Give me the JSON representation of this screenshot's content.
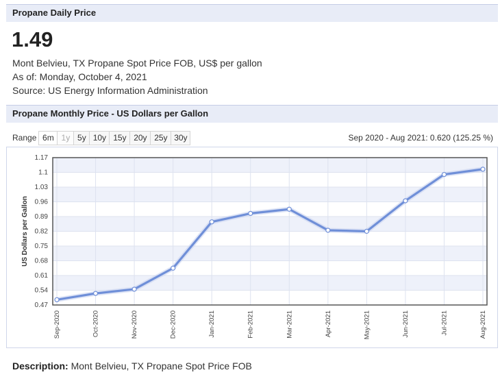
{
  "daily": {
    "header": "Propane Daily Price",
    "price": "1.49",
    "desc": "Mont Belvieu, TX Propane Spot Price FOB, US$ per gallon",
    "as_of": "As of: Monday, October 4, 2021",
    "source": "Source: US Energy Information Administration"
  },
  "monthly": {
    "header": "Propane Monthly Price - US Dollars per Gallon",
    "range_label": "Range",
    "range_buttons": [
      "6m",
      "1y",
      "5y",
      "10y",
      "15y",
      "20y",
      "25y",
      "30y"
    ],
    "range_disabled": "1y",
    "summary": "Sep 2020 - Aug 2021: 0.620 (125.25 %)"
  },
  "description": {
    "label": "Description:",
    "text": "Mont Belvieu, TX Propane Spot Price FOB"
  },
  "colors": {
    "line": "#6f8fd8",
    "band": "#eef1fa",
    "axis": "#555555"
  },
  "chart_data": {
    "type": "line",
    "title": "",
    "xlabel": "",
    "ylabel": "US Dollars per Gallon",
    "categories": [
      "Sep-2020",
      "Oct-2020",
      "Nov-2020",
      "Dec-2020",
      "Jan-2021",
      "Feb-2021",
      "Mar-2021",
      "Apr-2021",
      "May-2021",
      "Jun-2021",
      "Jul-2021",
      "Aug-2021"
    ],
    "values": [
      0.495,
      0.525,
      0.545,
      0.645,
      0.865,
      0.905,
      0.925,
      0.825,
      0.82,
      0.965,
      1.09,
      1.115
    ],
    "yticks": [
      "1.17",
      "1.1",
      "1.03",
      "0.96",
      "0.89",
      "0.82",
      "0.75",
      "0.68",
      "0.61",
      "0.54",
      "0.47"
    ],
    "ylim": [
      0.47,
      1.17
    ],
    "grid": true,
    "legend": "none"
  }
}
